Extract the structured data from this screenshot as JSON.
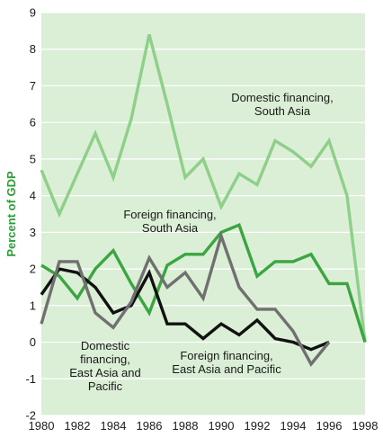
{
  "chart_data": {
    "type": "line",
    "ylabel": "Percent of GDP",
    "xlim": [
      1980,
      1998
    ],
    "ylim": [
      -2,
      9
    ],
    "x_ticks": [
      "1980",
      "1982",
      "1984",
      "1986",
      "1988",
      "1990",
      "1992",
      "1994",
      "1996",
      "1998"
    ],
    "y_ticks": [
      "-2",
      "-1",
      "0",
      "1",
      "2",
      "3",
      "4",
      "5",
      "6",
      "7",
      "8",
      "9"
    ],
    "grid": "horizontal",
    "colors": {
      "background": "#dbeed6",
      "grid": "#ffffff",
      "ylabel": "#2e9c3a"
    },
    "series": [
      {
        "name": "Domestic financing, South Asia",
        "color": "#8ecf8a",
        "x": [
          1980,
          1981,
          1982,
          1983,
          1984,
          1985,
          1986,
          1987,
          1988,
          1989,
          1990,
          1991,
          1992,
          1993,
          1994,
          1995,
          1996,
          1997,
          1998
        ],
        "y": [
          4.7,
          3.5,
          4.6,
          5.7,
          4.5,
          6.1,
          8.4,
          6.5,
          4.5,
          5.0,
          3.7,
          4.6,
          4.3,
          5.5,
          5.2,
          4.8,
          5.5,
          4.0,
          0.0
        ]
      },
      {
        "name": "Foreign financing, South Asia",
        "color": "#3aa541",
        "x": [
          1980,
          1981,
          1982,
          1983,
          1984,
          1985,
          1986,
          1987,
          1988,
          1989,
          1990,
          1991,
          1992,
          1993,
          1994,
          1995,
          1996,
          1997,
          1998
        ],
        "y": [
          2.1,
          1.8,
          1.2,
          2.0,
          2.5,
          1.6,
          0.8,
          2.1,
          2.4,
          2.4,
          3.0,
          3.2,
          1.8,
          2.2,
          2.2,
          2.4,
          1.6,
          1.6,
          0.0
        ]
      },
      {
        "name": "Domestic financing, East Asia and Pacific",
        "color": "#111111",
        "x": [
          1980,
          1981,
          1982,
          1983,
          1984,
          1985,
          1986,
          1987,
          1988,
          1989,
          1990,
          1991,
          1992,
          1993,
          1994,
          1995,
          1996
        ],
        "y": [
          1.3,
          2.0,
          1.9,
          1.5,
          0.8,
          1.0,
          1.9,
          0.5,
          0.5,
          0.1,
          0.5,
          0.2,
          0.6,
          0.1,
          0.0,
          -0.2,
          0.0
        ]
      },
      {
        "name": "Foreign financing, East Asia and Pacific",
        "color": "#707070",
        "x": [
          1980,
          1981,
          1982,
          1983,
          1984,
          1985,
          1986,
          1987,
          1988,
          1989,
          1990,
          1991,
          1992,
          1993,
          1994,
          1995,
          1996
        ],
        "y": [
          0.5,
          2.2,
          2.2,
          0.8,
          0.4,
          1.1,
          2.3,
          1.5,
          1.9,
          1.2,
          2.9,
          1.5,
          0.9,
          0.9,
          0.3,
          -0.6,
          0.0
        ]
      }
    ],
    "annotations": [
      {
        "id": "domestic-south-asia",
        "lines": [
          "Domestic financing,",
          "South Asia"
        ]
      },
      {
        "id": "foreign-south-asia",
        "lines": [
          "Foreign financing,",
          "South Asia"
        ]
      },
      {
        "id": "domestic-east-asia",
        "lines": [
          "Domestic",
          "financing,",
          "East Asia and",
          "Pacific"
        ]
      },
      {
        "id": "foreign-east-asia",
        "lines": [
          "Foreign financing,",
          "East Asia and Pacific"
        ]
      }
    ]
  }
}
